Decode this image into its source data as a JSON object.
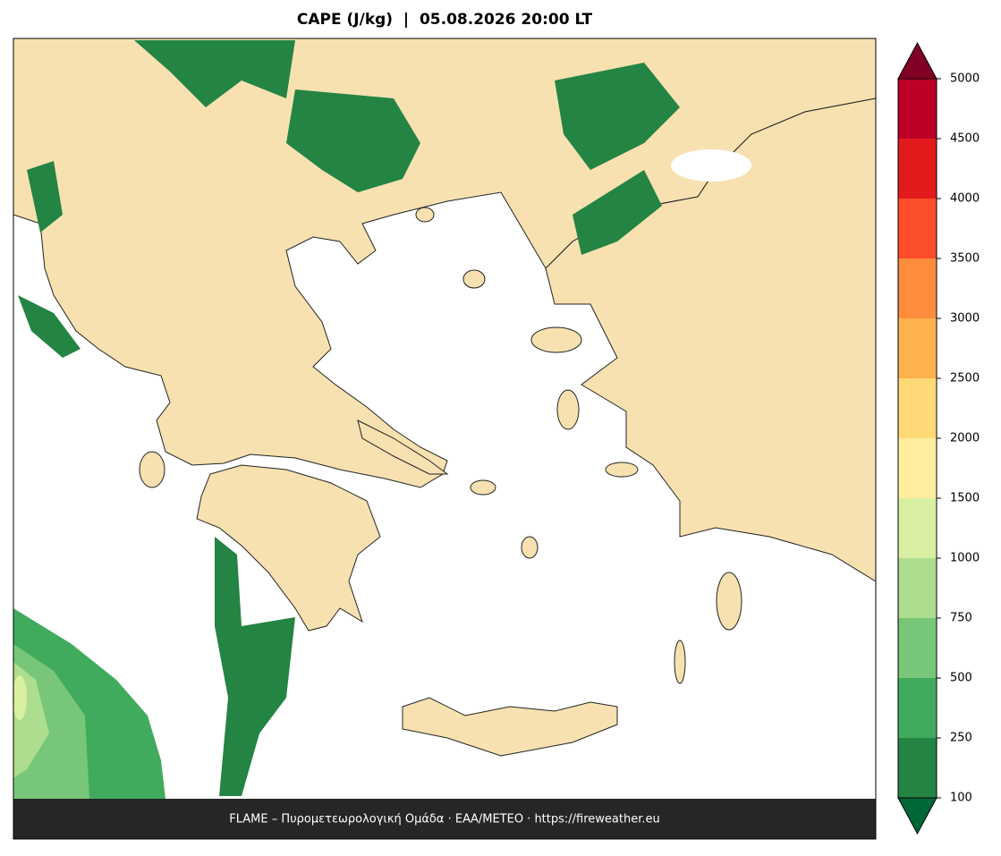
{
  "title": "CAPE (J/kg)  |  05.08.2026 20:00 LT",
  "footer": "FLAME – Πυρομετεωρολογική Ομάδα · ΕΑΑ/METEO · https://fireweather.eu",
  "colorbar": {
    "levels": [
      100,
      250,
      500,
      750,
      1000,
      1500,
      2000,
      2500,
      3000,
      3500,
      4000,
      4500,
      5000
    ],
    "colors": [
      "#238443",
      "#41ab5d",
      "#78c679",
      "#addd8e",
      "#d9f0a3",
      "#ffeda0",
      "#fed976",
      "#feb24c",
      "#fd8d3c",
      "#fc4e2a",
      "#e31a1c",
      "#bd0026"
    ],
    "under_color": "#006837",
    "over_color": "#800026"
  }
}
